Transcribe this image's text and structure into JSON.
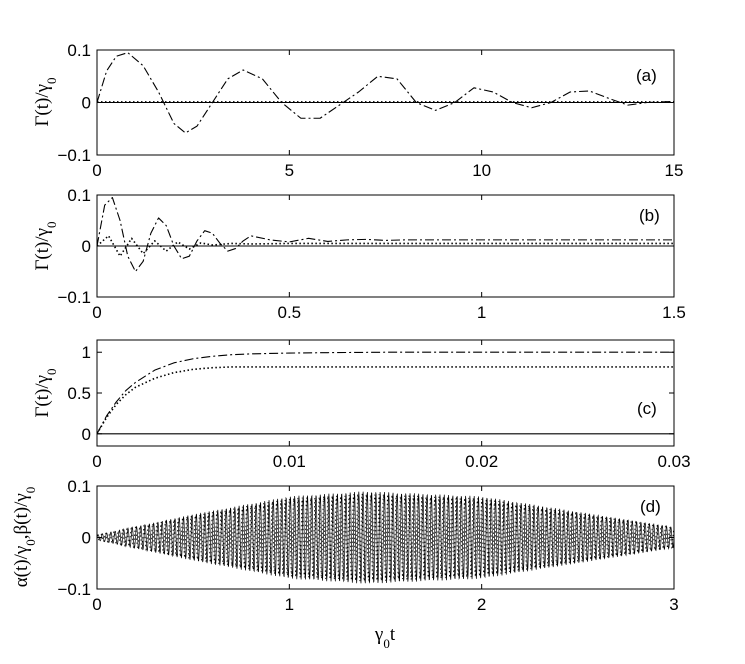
{
  "chart_data": [
    {
      "panel": "a",
      "label": "(a)",
      "type": "line",
      "ylabel": "Γ(t)/γ",
      "ylabel_sub": "0",
      "xlim": [
        0,
        15
      ],
      "ylim": [
        -0.1,
        0.1
      ],
      "xticks": [
        0,
        5,
        10,
        15
      ],
      "yticks": [
        -0.1,
        0,
        0.1
      ],
      "xtick_labels": [
        "0",
        "5",
        "10",
        "15"
      ],
      "ytick_labels": [
        "−0.1",
        "0",
        "0.1"
      ],
      "series": [
        {
          "style": "dash-dot",
          "x": [
            0,
            0.25,
            0.5,
            0.8,
            1.2,
            1.6,
            2.0,
            2.3,
            2.6,
            3.0,
            3.4,
            3.8,
            4.3,
            4.8,
            5.3,
            5.8,
            6.3,
            6.8,
            7.3,
            7.8,
            8.3,
            8.8,
            9.3,
            9.8,
            10.3,
            10.8,
            11.3,
            11.8,
            12.3,
            12.8,
            13.3,
            13.8,
            14.3,
            15.0
          ],
          "y": [
            0,
            0.06,
            0.088,
            0.095,
            0.07,
            0.02,
            -0.04,
            -0.058,
            -0.045,
            0.0,
            0.045,
            0.062,
            0.045,
            0.0,
            -0.03,
            -0.03,
            -0.005,
            0.02,
            0.05,
            0.045,
            0.0,
            -0.015,
            0.0,
            0.028,
            0.02,
            0.0,
            -0.01,
            0.0,
            0.02,
            0.022,
            0.008,
            -0.005,
            0.0,
            0.002
          ]
        },
        {
          "style": "dotted",
          "x": [
            0,
            15
          ],
          "y": [
            0.001,
            0.001
          ]
        },
        {
          "style": "solid",
          "x": [
            0,
            15
          ],
          "y": [
            0,
            0
          ]
        }
      ]
    },
    {
      "panel": "b",
      "label": "(b)",
      "type": "line",
      "ylabel": "Γ(t)/γ",
      "ylabel_sub": "0",
      "xlim": [
        0,
        1.5
      ],
      "ylim": [
        -0.1,
        0.1
      ],
      "xticks": [
        0,
        0.5,
        1,
        1.5
      ],
      "yticks": [
        -0.1,
        0,
        0.1
      ],
      "xtick_labels": [
        "0",
        "0.5",
        "1",
        "1.5"
      ],
      "ytick_labels": [
        "−0.1",
        "0",
        "0.1"
      ],
      "series": [
        {
          "style": "dash-dot",
          "x": [
            0,
            0.02,
            0.04,
            0.06,
            0.08,
            0.1,
            0.12,
            0.14,
            0.16,
            0.18,
            0.2,
            0.22,
            0.24,
            0.26,
            0.28,
            0.3,
            0.32,
            0.34,
            0.36,
            0.38,
            0.4,
            0.45,
            0.5,
            0.55,
            0.6,
            0.65,
            0.7,
            0.75,
            0.8,
            0.9,
            1.0,
            1.1,
            1.2,
            1.3,
            1.4,
            1.5
          ],
          "y": [
            0,
            0.08,
            0.095,
            0.05,
            -0.02,
            -0.05,
            -0.03,
            0.025,
            0.055,
            0.04,
            0.0,
            -0.025,
            -0.02,
            0.01,
            0.03,
            0.025,
            0.005,
            -0.01,
            -0.005,
            0.01,
            0.02,
            0.012,
            0.008,
            0.015,
            0.009,
            0.012,
            0.013,
            0.011,
            0.012,
            0.012,
            0.012,
            0.012,
            0.012,
            0.012,
            0.012,
            0.012
          ]
        },
        {
          "style": "dotted",
          "x": [
            0,
            0.03,
            0.06,
            0.09,
            0.12,
            0.15,
            0.18,
            0.21,
            0.24,
            0.27,
            0.3,
            0.35,
            0.4,
            0.5,
            0.6,
            0.8,
            1.0,
            1.5
          ],
          "y": [
            0,
            0.02,
            -0.02,
            0.015,
            -0.015,
            0.01,
            -0.01,
            0.008,
            -0.006,
            0.006,
            0.002,
            0.005,
            0.004,
            0.005,
            0.005,
            0.005,
            0.005,
            0.005
          ]
        },
        {
          "style": "solid",
          "x": [
            0,
            1.5
          ],
          "y": [
            0,
            0
          ]
        }
      ]
    },
    {
      "panel": "c",
      "label": "(c)",
      "type": "line",
      "ylabel": "Γ(t)/γ",
      "ylabel_sub": "0",
      "xlim": [
        0,
        0.03
      ],
      "ylim": [
        -0.15,
        1.15
      ],
      "xticks": [
        0,
        0.01,
        0.02,
        0.03
      ],
      "yticks": [
        0,
        0.5,
        1
      ],
      "xtick_labels": [
        "0",
        "0.01",
        "0.02",
        "0.03"
      ],
      "ytick_labels": [
        "0",
        "0.5",
        "1"
      ],
      "series": [
        {
          "style": "dash-dot",
          "x": [
            0,
            0.0005,
            0.001,
            0.0015,
            0.002,
            0.003,
            0.004,
            0.005,
            0.006,
            0.007,
            0.008,
            0.01,
            0.012,
            0.015,
            0.02,
            0.025,
            0.03
          ],
          "y": [
            0.0,
            0.22,
            0.39,
            0.53,
            0.63,
            0.78,
            0.87,
            0.92,
            0.95,
            0.97,
            0.98,
            0.99,
            0.995,
            1.0,
            1.0,
            1.0,
            1.0
          ]
        },
        {
          "style": "dotted",
          "x": [
            0,
            0.0005,
            0.001,
            0.0015,
            0.002,
            0.003,
            0.004,
            0.005,
            0.006,
            0.007,
            0.008,
            0.01,
            0.015,
            0.02,
            0.025,
            0.03
          ],
          "y": [
            0.0,
            0.2,
            0.36,
            0.48,
            0.57,
            0.68,
            0.75,
            0.79,
            0.81,
            0.82,
            0.82,
            0.82,
            0.82,
            0.82,
            0.82,
            0.82
          ]
        },
        {
          "style": "solid",
          "x": [
            0,
            0.03
          ],
          "y": [
            0,
            0
          ]
        }
      ]
    },
    {
      "panel": "d",
      "label": "(d)",
      "type": "line",
      "ylabel": "α(t)/γ",
      "ylabel_sub": "0",
      "ylabel_mid": ",β(t)/γ",
      "ylabel_sub2": "0",
      "xlabel": "γ",
      "xlabel_sub": "0",
      "xlabel_tail": "t",
      "xlim": [
        0,
        3
      ],
      "ylim": [
        -0.1,
        0.1
      ],
      "xticks": [
        0,
        1,
        2,
        3
      ],
      "yticks": [
        -0.1,
        0,
        0.1
      ],
      "xtick_labels": [
        "0",
        "1",
        "2",
        "3"
      ],
      "ytick_labels": [
        "−0.1",
        "0",
        "0.1"
      ],
      "oscillation": {
        "cycles": 135,
        "envelope_t": [
          0,
          0.5,
          1.0,
          1.4,
          2.0,
          2.5,
          3.0
        ],
        "envelope_amp": [
          0.005,
          0.045,
          0.08,
          0.09,
          0.08,
          0.05,
          0.02
        ]
      },
      "series": [
        {
          "style": "solid",
          "name": ""
        },
        {
          "style": "dotted",
          "name": ""
        }
      ]
    }
  ]
}
